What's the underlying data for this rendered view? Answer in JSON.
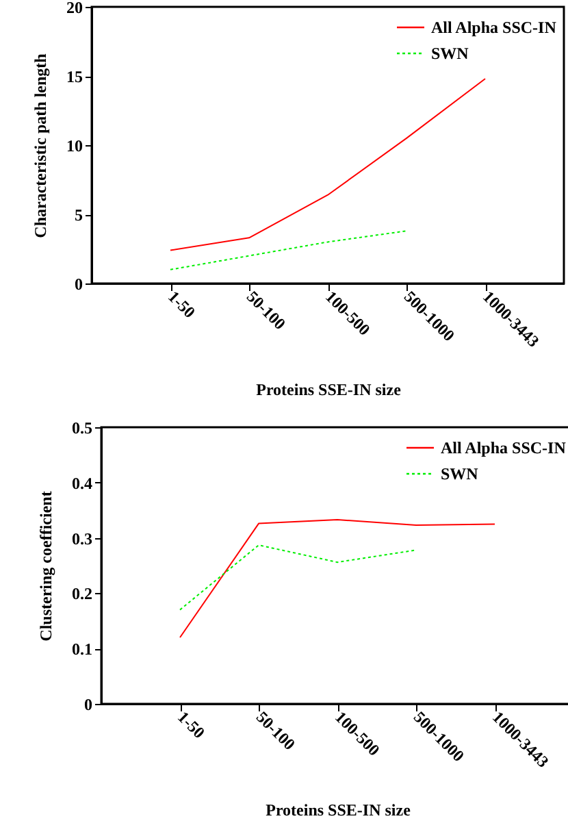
{
  "chart_data": [
    {
      "type": "line",
      "xlabel": "Proteins SSE-IN size",
      "ylabel": "Characteristic path length",
      "categories": [
        "1-50",
        "50-100",
        "100-500",
        "500-1000",
        "1000-3443"
      ],
      "ylim": [
        0,
        20
      ],
      "yticks": [
        0,
        5,
        10,
        15,
        20
      ],
      "grid": false,
      "legend": "top right",
      "marker": "none",
      "series": [
        {
          "name": "All Alpha SSC-IN",
          "color": "#ff0000",
          "line_style": "solid",
          "values": [
            2.4,
            3.3,
            6.4,
            10.5,
            14.8
          ]
        },
        {
          "name": "SWN",
          "color": "#00ee00",
          "line_style": "dotted",
          "values": [
            1.0,
            2.0,
            3.0,
            3.8,
            null
          ]
        }
      ]
    },
    {
      "type": "line",
      "xlabel": "Proteins SSE-IN size",
      "ylabel": "Clustering coefficient",
      "categories": [
        "1-50",
        "50-100",
        "100-500",
        "500-1000",
        "1000-3443"
      ],
      "ylim": [
        0,
        0.5
      ],
      "yticks": [
        0,
        0.1,
        0.2,
        0.3,
        0.4,
        0.5
      ],
      "grid": false,
      "legend": "top right",
      "marker": "none",
      "series": [
        {
          "name": "All Alpha SSC-IN",
          "color": "#ff0000",
          "line_style": "solid",
          "values": [
            0.12,
            0.326,
            0.333,
            0.323,
            0.325
          ]
        },
        {
          "name": "SWN",
          "color": "#00ee00",
          "line_style": "dotted",
          "values": [
            0.17,
            0.287,
            0.256,
            0.278,
            null
          ]
        }
      ]
    }
  ]
}
